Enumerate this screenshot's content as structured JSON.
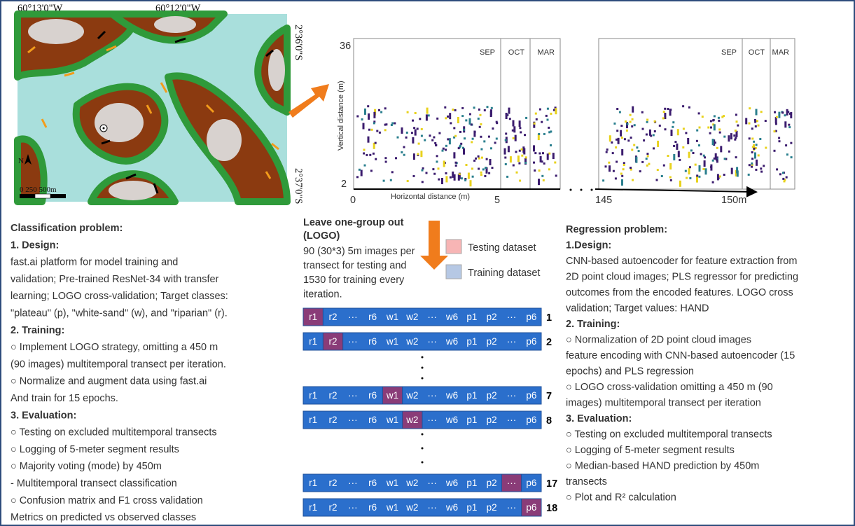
{
  "map": {
    "lon_left": "60°13'0\"W",
    "lon_right": "60°12'0\"W",
    "lat_top": "2°36'0\"S",
    "lat_bottom": "2°37'0\"S",
    "north": "N",
    "scale": "0   250  500m"
  },
  "profile": {
    "y_axis_title": "Vertical distance (m)",
    "y_top": "36",
    "y_bottom": "2",
    "x_axis_title": "Horizontal distance (m)",
    "x_labels": [
      "0",
      "5",
      "145",
      "150m"
    ],
    "months": [
      "SEP",
      "OCT",
      "MAR"
    ]
  },
  "classification": {
    "title": "Classification problem:",
    "design": {
      "heading": "1. Design:",
      "lines": [
        "fast.ai platform for model training and",
        " validation; Pre-trained ResNet-34 with transfer",
        "learning; LOGO cross-validation; Target classes:",
        "\"plateau\" (p), \"white-sand\" (w), and \"riparian\" (r)."
      ]
    },
    "training": {
      "heading": "2. Training:",
      "lines": [
        "○  Implement LOGO strategy, omitting a 450 m",
        "(90 images) multitemporal transect per iteration.",
        "○  Normalize and augment data using fast.ai",
        "And train for 15 epochs."
      ]
    },
    "evaluation": {
      "heading": "3. Evaluation:",
      "lines": [
        "○  Testing on excluded multitemporal transects",
        "○  Logging of 5-meter segment results",
        "○  Majority voting (mode) by 450m",
        "- Multitemporal transect classification",
        "○  Confusion matrix and F1 cross validation",
        "Metrics on predicted vs observed classes"
      ]
    }
  },
  "logo": {
    "title": [
      "Leave one-group out",
      "(LOGO)"
    ],
    "description": [
      "90 (30*3) 5m images per",
      "transect for testing and",
      "1530 for training every",
      "iteration."
    ],
    "legend": [
      "Testing dataset",
      "Training dataset"
    ],
    "cells": [
      "r1",
      "r2",
      "···",
      "r6",
      "w1",
      "w2",
      "···",
      "w6",
      "p1",
      "p2",
      "···",
      "p6"
    ],
    "rows": [
      {
        "label": "1",
        "highlight": 0
      },
      {
        "label": "2",
        "highlight": 1
      },
      {
        "label": "7",
        "highlight": 4
      },
      {
        "label": "8",
        "highlight": 5
      },
      {
        "label": "17",
        "highlight": 10
      },
      {
        "label": "18",
        "highlight": 11
      }
    ]
  },
  "regression": {
    "title": "Regression problem:",
    "design": {
      "heading": "1.Design:",
      "lines": [
        "CNN-based autoencoder for feature extraction from",
        "2D point cloud images; PLS regressor for predicting",
        "outcomes from the encoded features. LOGO cross",
        "validation; Target values: HAND"
      ]
    },
    "training": {
      "heading": "2. Training:",
      "lines": [
        "○  Normalization of 2D point cloud images",
        "feature encoding with CNN-based autoencoder (15",
        "epochs) and PLS regression",
        "  ○  LOGO cross-validation omitting a 450 m (90",
        "      images) multitemporal transect per iteration"
      ]
    },
    "evaluation": {
      "heading": "3. Evaluation:",
      "lines": [
        "○     Testing on excluded multitemporal transects",
        "○     Logging of 5-meter segment results",
        "○     Median-based HAND prediction by 450m",
        "       transects",
        "○     Plot and R² calculation"
      ]
    }
  }
}
